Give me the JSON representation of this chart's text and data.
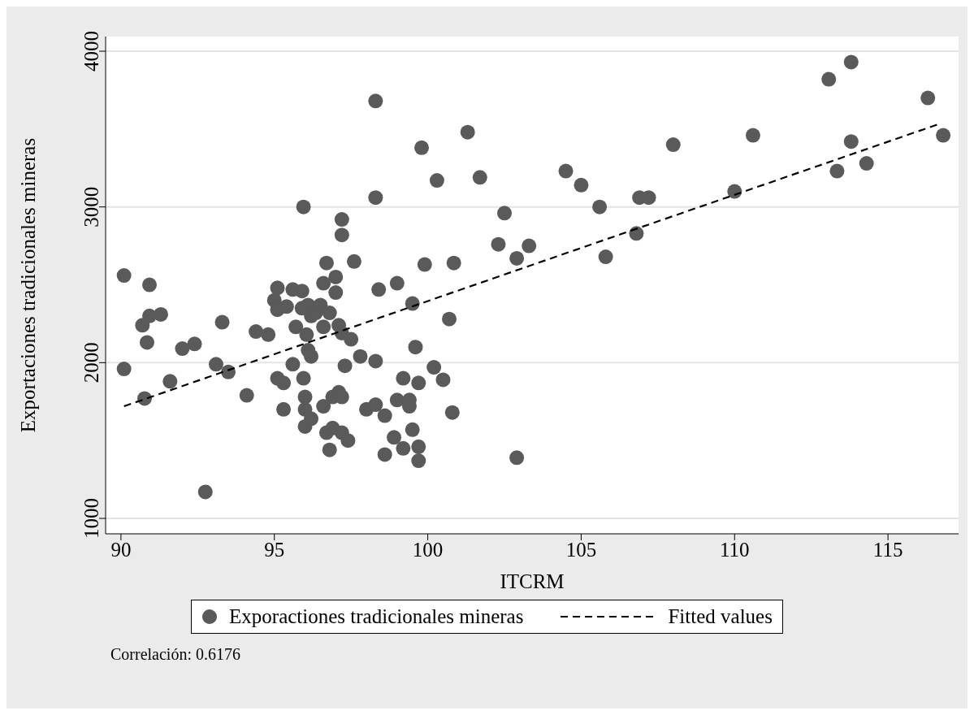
{
  "chart_data": {
    "type": "scatter",
    "xlabel": "ITCRM",
    "ylabel": "Exportaciones tradicionales mineras",
    "xlim": [
      89.5,
      117.3
    ],
    "xticks": [
      90,
      95,
      100,
      105,
      110,
      115
    ],
    "ylim": [
      901,
      4094
    ],
    "yticks": [
      1000,
      2000,
      3000,
      4000
    ],
    "grid": "y",
    "legend": "bottom",
    "annotations": [
      "Correlación: 0.6176"
    ],
    "series": [
      {
        "name": "Exporactiones tradicionales mineras",
        "marker": "circle",
        "color": "#5a5a5a",
        "x": [
          90.1,
          90.1,
          90.93,
          90.7,
          90.93,
          91.3,
          90.85,
          90.77,
          91.6,
          92.0,
          92.4,
          92.75,
          93.1,
          93.3,
          93.5,
          94.1,
          94.4,
          94.8,
          95.0,
          95.1,
          95.1,
          95.1,
          95.3,
          95.3,
          95.4,
          95.6,
          95.6,
          95.7,
          95.9,
          95.95,
          95.95,
          96.0,
          96.0,
          96.0,
          96.05,
          96.1,
          96.2,
          96.2,
          96.2,
          96.1,
          95.9,
          96.35,
          96.5,
          96.6,
          96.6,
          96.6,
          96.7,
          96.7,
          96.8,
          96.8,
          96.9,
          96.9,
          97.0,
          97.0,
          97.1,
          97.1,
          97.2,
          97.2,
          97.2,
          97.2,
          97.2,
          97.3,
          97.4,
          97.5,
          97.6,
          97.8,
          98.0,
          98.3,
          98.3,
          98.3,
          98.3,
          98.4,
          98.6,
          98.6,
          98.9,
          99.0,
          99.0,
          99.2,
          99.2,
          99.4,
          99.4,
          99.5,
          99.5,
          99.6,
          99.7,
          99.7,
          99.7,
          99.8,
          99.9,
          100.2,
          100.3,
          100.5,
          100.7,
          100.8,
          100.85,
          101.3,
          101.7,
          102.3,
          102.5,
          102.9,
          102.9,
          103.3,
          104.5,
          105.0,
          105.6,
          105.8,
          106.8,
          106.9,
          107.2,
          108.0,
          110.0,
          110.6,
          113.07,
          113.34,
          113.8,
          113.8,
          114.3,
          116.3,
          116.8
        ],
        "values": [
          2560,
          1960,
          2500,
          2240,
          2300,
          2310,
          2130,
          1770,
          1880,
          2090,
          2120,
          1170,
          1990,
          2260,
          1940,
          1790,
          2200,
          2180,
          2400,
          2480,
          2340,
          1900,
          1700,
          1870,
          2360,
          2470,
          1990,
          2230,
          2460,
          3000,
          1900,
          1780,
          1700,
          1590,
          2180,
          2080,
          1640,
          2040,
          2300,
          2370,
          2350,
          2320,
          2370,
          2510,
          2230,
          1720,
          1550,
          2640,
          2320,
          1440,
          1780,
          1580,
          2550,
          2450,
          1810,
          2240,
          2920,
          2820,
          2190,
          1780,
          1550,
          1980,
          1500,
          2150,
          2650,
          2040,
          1700,
          2010,
          3680,
          3060,
          1730,
          2470,
          1660,
          1410,
          1520,
          2510,
          1760,
          1450,
          1900,
          1720,
          1760,
          2380,
          1570,
          2100,
          1870,
          1460,
          1370,
          3380,
          2630,
          1970,
          3170,
          1890,
          2280,
          1680,
          2640,
          3480,
          3190,
          2760,
          2960,
          2670,
          1390,
          2750,
          3230,
          3140,
          3000,
          2680,
          2830,
          3060,
          3060,
          3400,
          3100,
          3460,
          3820,
          3230,
          3930,
          3420,
          3280,
          3700,
          3460
        ]
      },
      {
        "name": "Fitted values",
        "type": "line",
        "line_style": "dashed",
        "color": "#000000",
        "x": [
          90.1,
          116.7
        ],
        "values": [
          1720,
          3535
        ]
      }
    ]
  }
}
